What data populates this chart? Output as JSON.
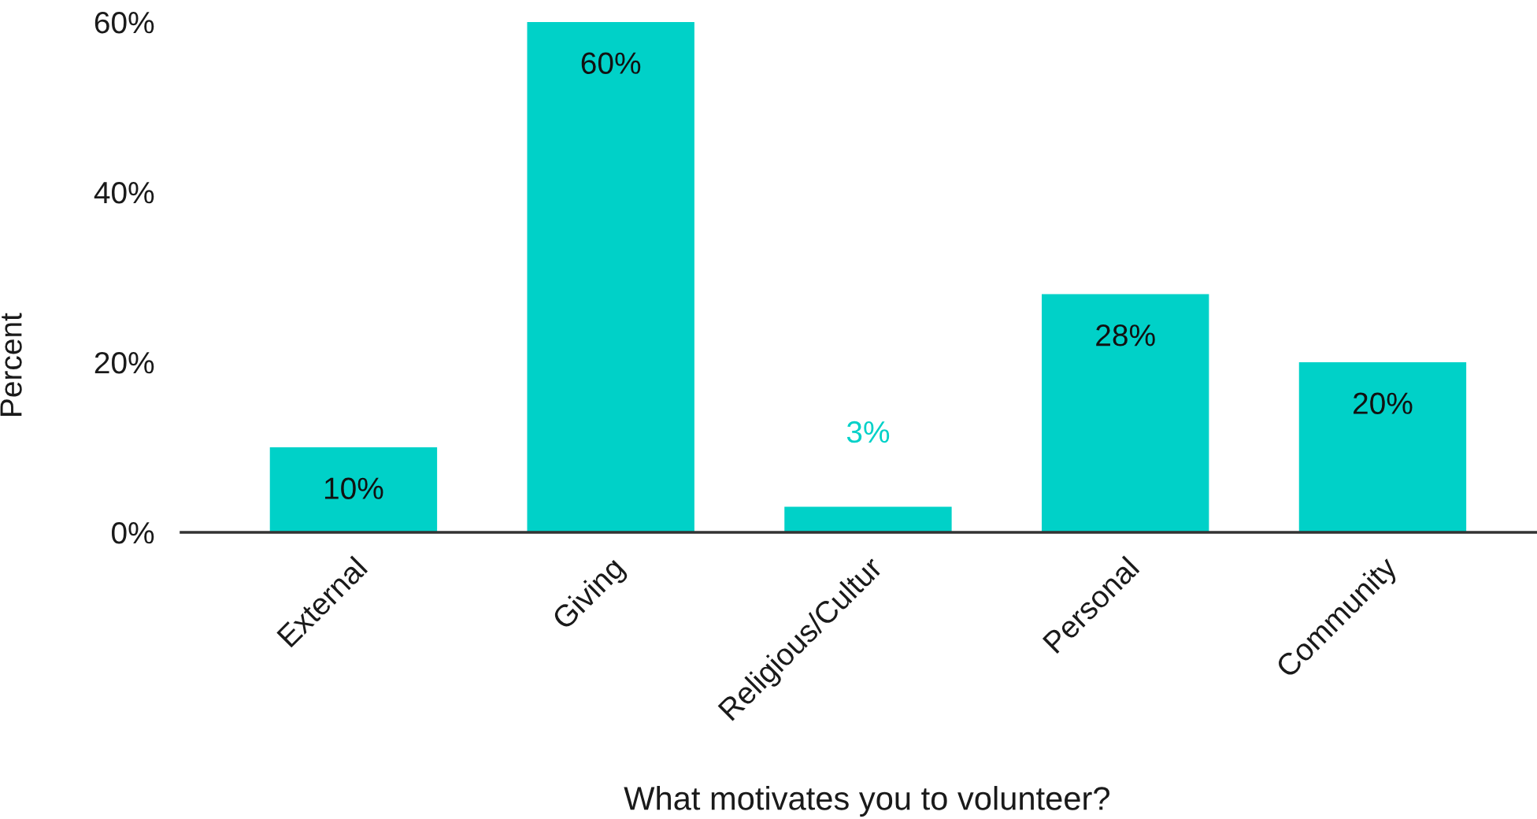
{
  "chart_data": {
    "type": "bar",
    "xlabel": "What motivates you to volunteer?",
    "ylabel": "Percent",
    "categories": [
      "External",
      "Giving",
      "Religious/Cultur",
      "Personal",
      "Community"
    ],
    "values": [
      10,
      60,
      3,
      28,
      20
    ],
    "color": "#00d1c8",
    "value_labels": [
      "10%",
      "60%",
      "3%",
      "28%",
      "20%"
    ],
    "ylim": [
      0,
      60
    ],
    "yticks": [
      {
        "value": 0,
        "label": "0%"
      },
      {
        "value": 20,
        "label": "20%"
      },
      {
        "value": 40,
        "label": "40%"
      },
      {
        "value": 60,
        "label": "60%"
      }
    ]
  }
}
